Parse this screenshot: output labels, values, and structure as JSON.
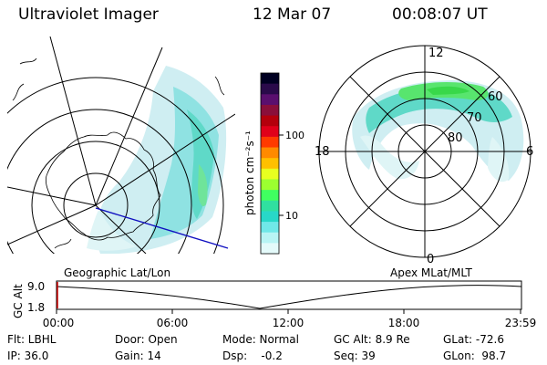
{
  "header": {
    "instrument": "Ultraviolet Imager",
    "date": "12 Mar 07",
    "time": "00:08:07 UT"
  },
  "colorbar": {
    "label": "photon cm⁻²s⁻¹",
    "ticks": [
      "100",
      "10"
    ],
    "colors": [
      "#000022",
      "#2a0a4a",
      "#5a0f6e",
      "#8a0f3a",
      "#b4000c",
      "#e0001a",
      "#ff3a00",
      "#ff8a00",
      "#ffc000",
      "#e8ff20",
      "#9cff30",
      "#40ff60",
      "#30e0a0",
      "#28d8c8",
      "#70e8e8",
      "#b8f4f4",
      "#e4fafa"
    ]
  },
  "left_map": {
    "caption": "Geographic Lat/Lon"
  },
  "right_map": {
    "caption": "Apex MLat/MLT",
    "hour_labels": {
      "top": "12",
      "left": "18",
      "right": "6",
      "bottom": "0"
    },
    "lat_labels": [
      "80",
      "70",
      "60"
    ]
  },
  "altitude_plot": {
    "ylabel": "GC Alt",
    "yticks": [
      "9.0",
      "1.8"
    ],
    "xticks": [
      "00:00",
      "06:00",
      "12:00",
      "18:00",
      "23:59"
    ]
  },
  "info": {
    "flt": "Flt: LBHL",
    "ip": "IP: 36.0",
    "door": "Door: Open",
    "gain": "Gain: 14",
    "mode": "Mode: Normal",
    "dsp": "Dsp:    -0.2",
    "gcalt": "GC Alt: 8.9 Re",
    "seq": "Seq: 39",
    "glat": "GLat: -72.6",
    "glon": "GLon:  98.7"
  }
}
